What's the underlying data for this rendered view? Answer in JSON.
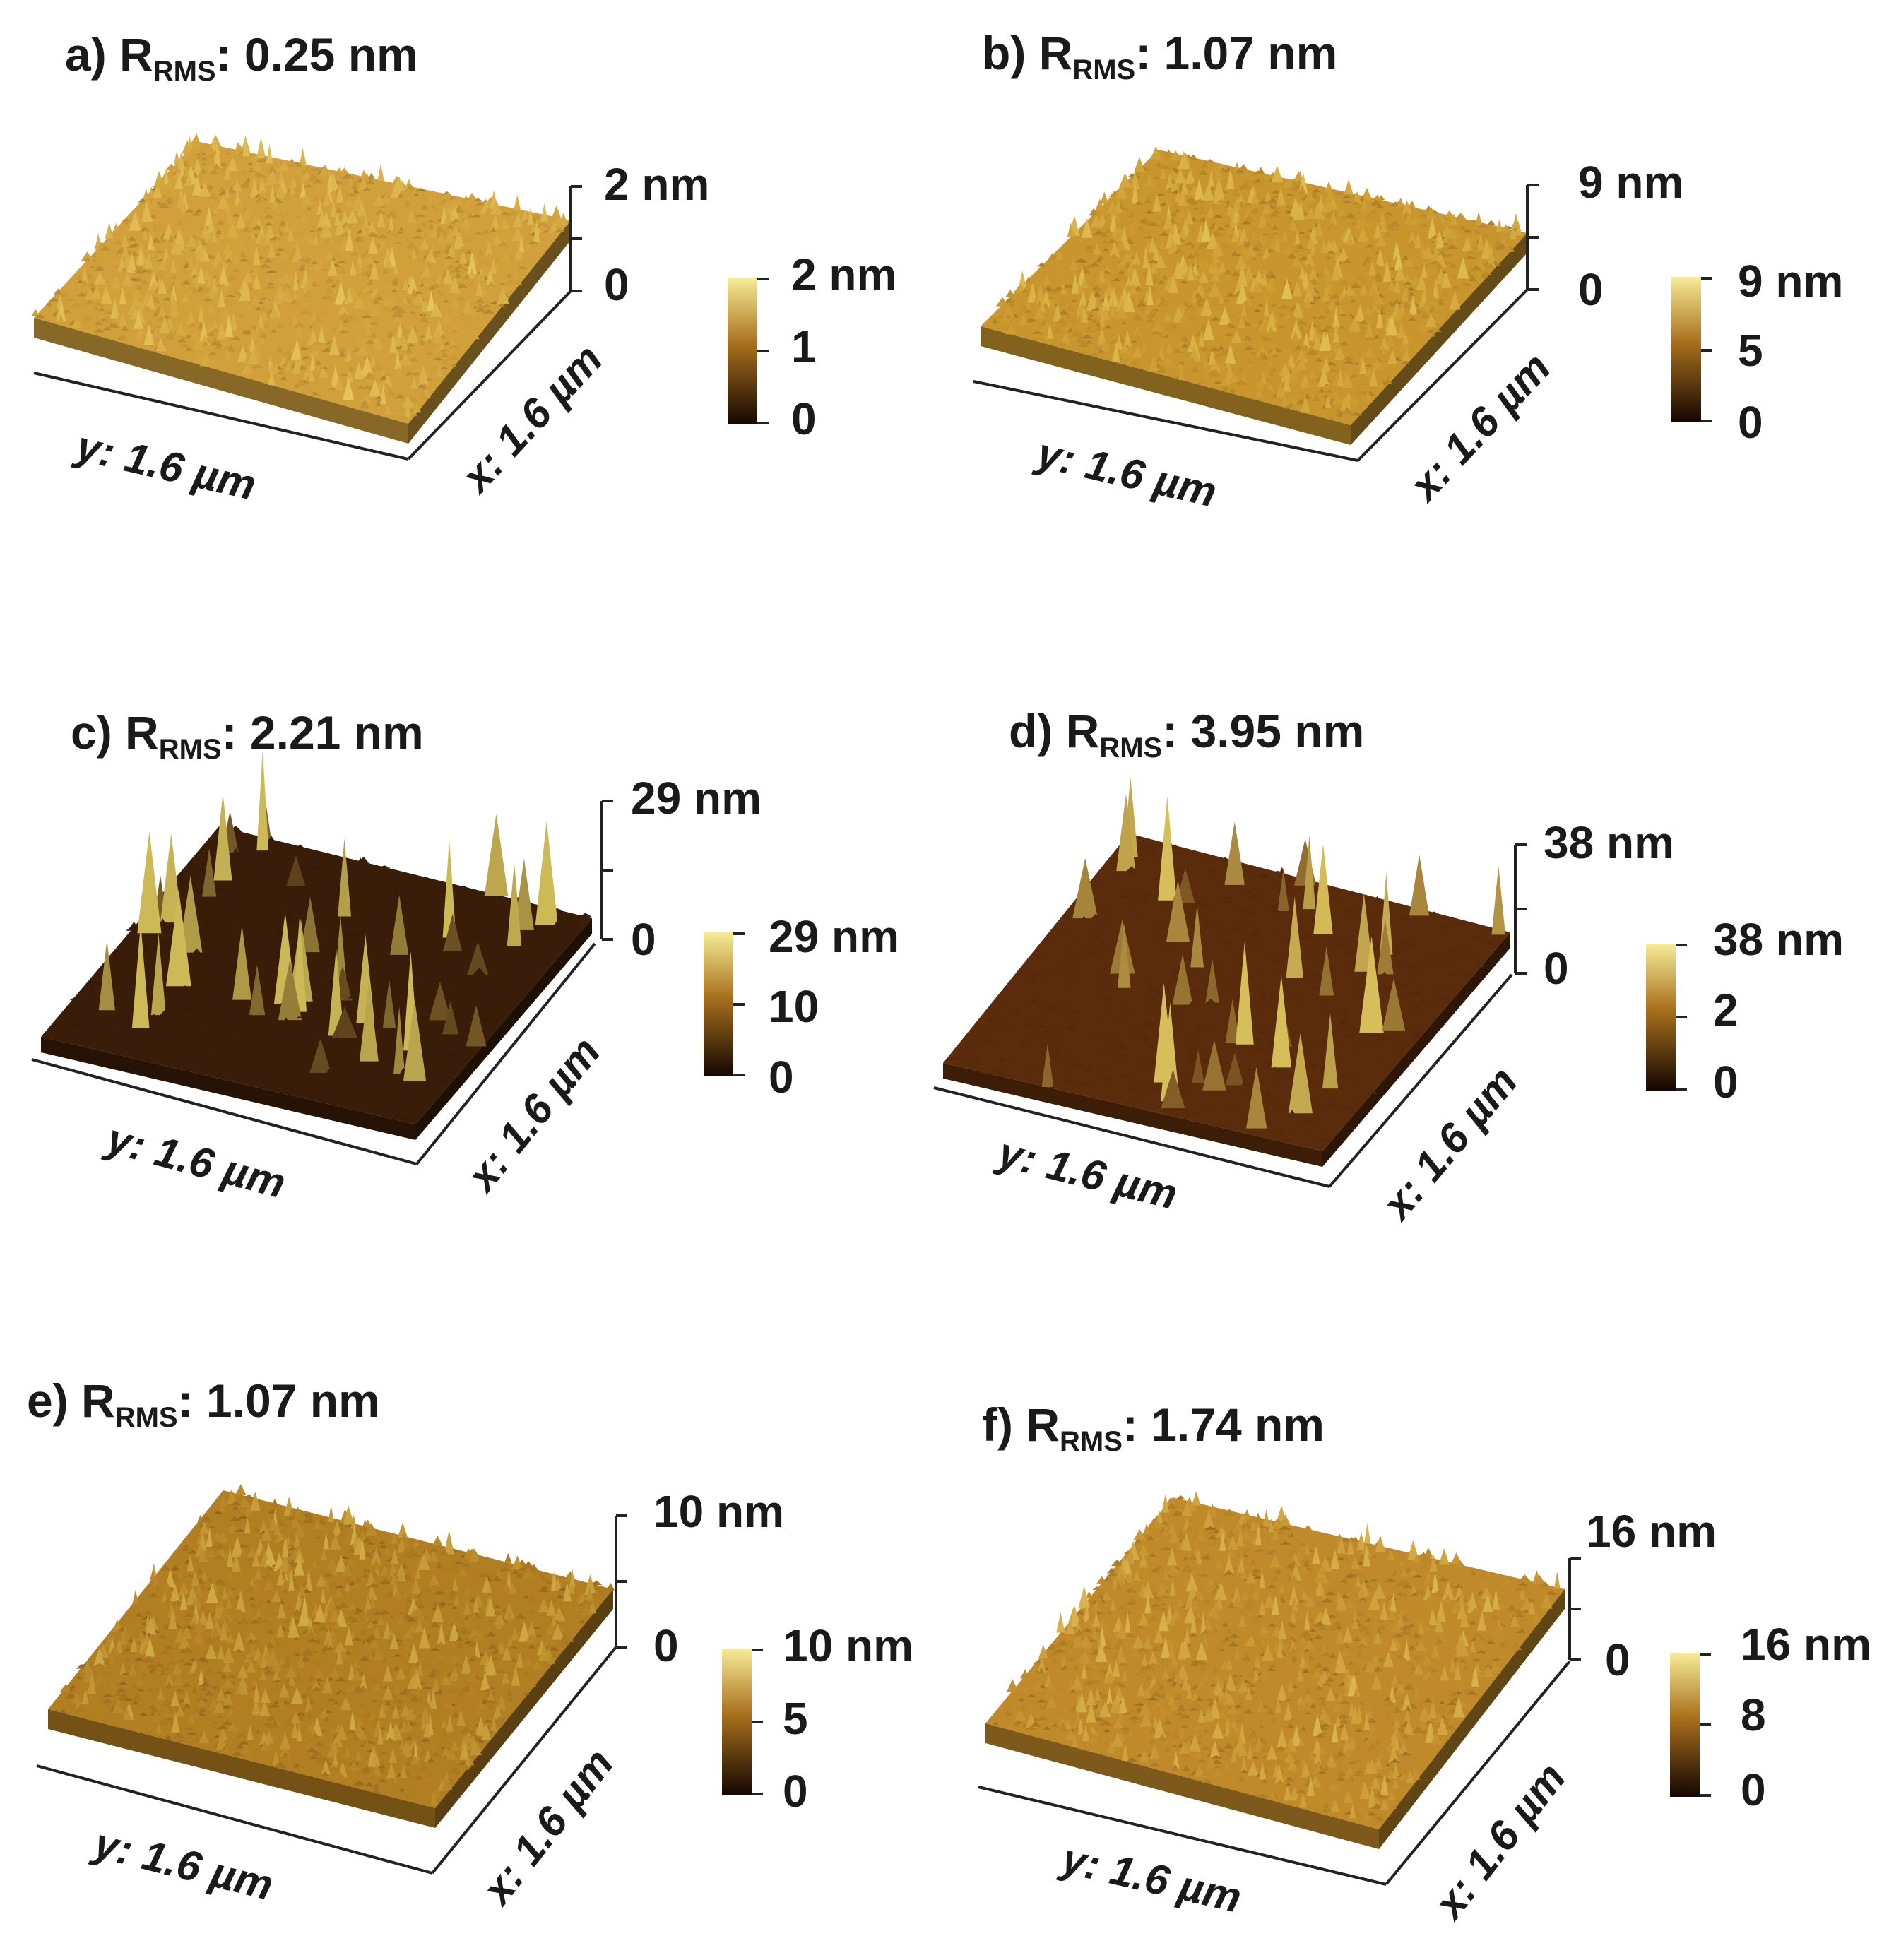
{
  "figure": {
    "panels": [
      {
        "id": "a",
        "letter": "a)",
        "r_symbol": "R",
        "r_sub": "RMS",
        "r_value": ": 0.25 nm",
        "z_max_label": "2 nm",
        "z_min_label": "0",
        "colorbar_labels": [
          "2 nm",
          "1",
          "0"
        ],
        "y_axis_label": "y: 1.6 µm",
        "x_axis_label": "x: 1.6 µm",
        "surface": "fine",
        "base_color": "#d1a03a"
      },
      {
        "id": "b",
        "letter": "b)",
        "r_symbol": "R",
        "r_sub": "RMS",
        "r_value": ": 1.07 nm",
        "z_max_label": "9 nm",
        "z_min_label": "0",
        "colorbar_labels": [
          "9 nm",
          "5",
          "0"
        ],
        "y_axis_label": "y: 1.6 µm",
        "x_axis_label": "x: 1.6 µm",
        "surface": "fine",
        "base_color": "#c9962e"
      },
      {
        "id": "c",
        "letter": "c)",
        "r_symbol": "R",
        "r_sub": "RMS",
        "r_value": ": 2.21 nm",
        "z_max_label": "29 nm",
        "z_min_label": "0",
        "colorbar_labels": [
          "29 nm",
          "10",
          "0"
        ],
        "y_axis_label": "y: 1.6 µm",
        "x_axis_label": "x: 1.6 µm",
        "surface": "spiky",
        "base_color": "#3a1d08"
      },
      {
        "id": "d",
        "letter": "d)",
        "r_symbol": "R",
        "r_sub": "RMS",
        "r_value": ": 3.95 nm",
        "z_max_label": "38 nm",
        "z_min_label": "0",
        "colorbar_labels": [
          "38 nm",
          "2",
          "0"
        ],
        "y_axis_label": "y: 1.6 µm",
        "x_axis_label": "x: 1.6 µm",
        "surface": "spiky",
        "base_color": "#5a2c0c"
      },
      {
        "id": "e",
        "letter": "e)",
        "r_symbol": "R",
        "r_sub": "RMS",
        "r_value": ": 1.07 nm",
        "z_max_label": "10 nm",
        "z_min_label": "0",
        "colorbar_labels": [
          "10 nm",
          "5",
          "0"
        ],
        "y_axis_label": "y: 1.6 µm",
        "x_axis_label": "x: 1.6 µm",
        "surface": "fine",
        "base_color": "#b27e22"
      },
      {
        "id": "f",
        "letter": "f)",
        "r_symbol": "R",
        "r_sub": "RMS",
        "r_value": ": 1.74 nm",
        "z_max_label": "16 nm",
        "z_min_label": "0",
        "colorbar_labels": [
          "16 nm",
          "8",
          "0"
        ],
        "y_axis_label": "y: 1.6 µm",
        "x_axis_label": "x: 1.6 µm",
        "surface": "fine",
        "base_color": "#c08a2a"
      }
    ],
    "colors": {
      "colormap_top": "#f7ec98",
      "colormap_mid": "#a8701c",
      "colormap_bottom": "#140602",
      "text": "#1a1a1a"
    }
  }
}
